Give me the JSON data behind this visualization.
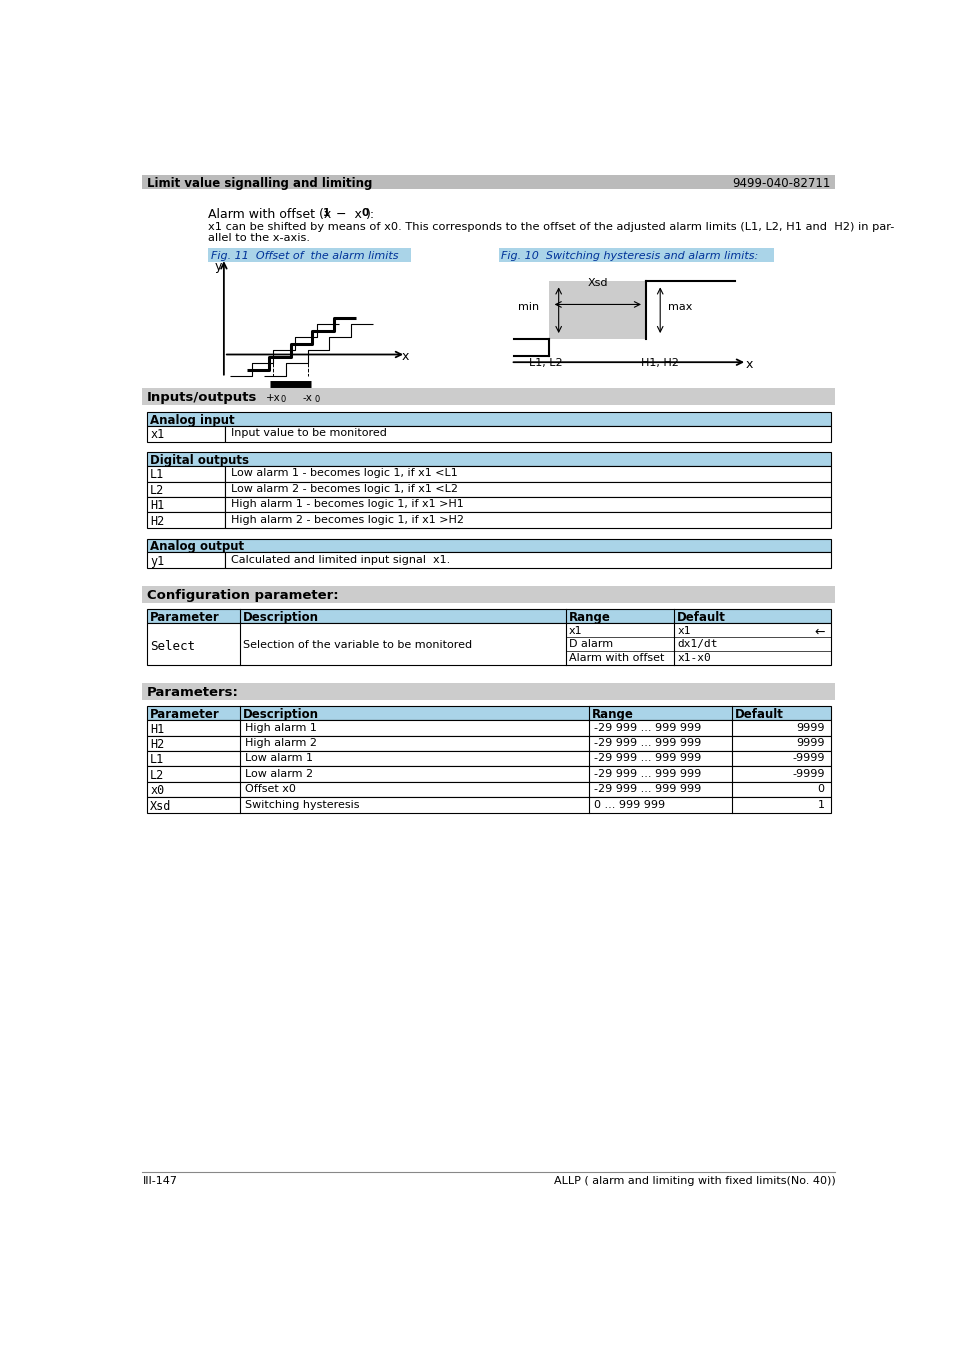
{
  "page_title_left": "Limit value signalling and limiting",
  "page_title_right": "9499-040-82711",
  "bg_color": "#ffffff",
  "section_bg": "#cccccc",
  "table_header_bg": "#aad4e8",
  "table_border": "#000000",
  "fig_caption_bg": "#aad4e8",
  "fig11_caption": "Fig. 11  Offset of  the alarm limits",
  "fig10_caption": "Fig. 10  Switching hysteresis and alarm limits:",
  "inputs_outputs_title": "Inputs/outputs",
  "analog_input_header": "Analog input",
  "analog_input_rows": [
    [
      "x1",
      "Input value to be monitored"
    ]
  ],
  "digital_outputs_header": "Digital outputs",
  "digital_outputs_rows": [
    [
      "L1",
      "Low alarm 1 - becomes logic 1, if x1 <L1"
    ],
    [
      "L2",
      "Low alarm 2 - becomes logic 1, if x1 <L2"
    ],
    [
      "H1",
      "High alarm 1 - becomes logic 1, if x1 >H1"
    ],
    [
      "H2",
      "High alarm 2 - becomes logic 1, if x1 >H2"
    ]
  ],
  "analog_output_header": "Analog output",
  "analog_output_rows": [
    [
      "y1",
      "Calculated and limited input signal  x1."
    ]
  ],
  "config_param_title": "Configuration parameter:",
  "config_table_headers": [
    "Parameter",
    "Description",
    "Range",
    "Default"
  ],
  "params_title": "Parameters:",
  "params_table_headers": [
    "Parameter",
    "Description",
    "Range",
    "Default"
  ],
  "params_rows": [
    [
      "H1",
      "High alarm 1",
      "-29 999 ... 999 999",
      "9999"
    ],
    [
      "H2",
      "High alarm 2",
      "-29 999 ... 999 999",
      "9999"
    ],
    [
      "L1",
      "Low alarm 1",
      "-29 999 ... 999 999",
      "-9999"
    ],
    [
      "L2",
      "Low alarm 2",
      "-29 999 ... 999 999",
      "-9999"
    ],
    [
      "x0",
      "Offset x0",
      "-29 999 ... 999 999",
      "0"
    ],
    [
      "Xsd",
      "Switching hysteresis",
      "0 ... 999 999",
      "1"
    ]
  ],
  "footer_left": "III-147",
  "footer_right": "ALLP ( alarm and limiting with fixed limits(No. 40))"
}
